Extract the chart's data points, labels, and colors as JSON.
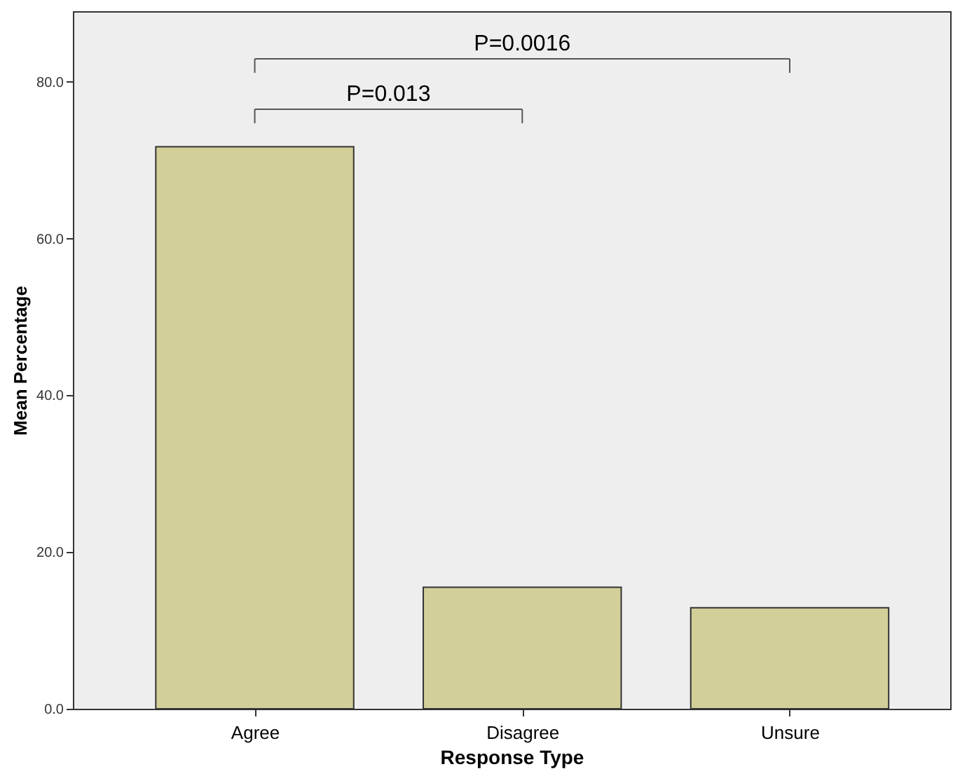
{
  "chart_data": {
    "type": "bar",
    "xlabel": "Response Type",
    "ylabel": "Mean Percentage",
    "categories": [
      "Agree",
      "Disagree",
      "Unsure"
    ],
    "values": [
      71.7,
      15.5,
      12.9
    ],
    "color": "#d3cf98",
    "ylim": [
      0,
      89
    ],
    "yticks": [
      {
        "value": 0,
        "label": "0.0"
      },
      {
        "value": 20,
        "label": "20.0"
      },
      {
        "value": 40,
        "label": "40.0"
      },
      {
        "value": 60,
        "label": "60.0"
      },
      {
        "value": 80,
        "label": "80.0"
      }
    ],
    "grid": false,
    "annotations": [
      "P=0.0016",
      "P=0.013"
    ]
  }
}
